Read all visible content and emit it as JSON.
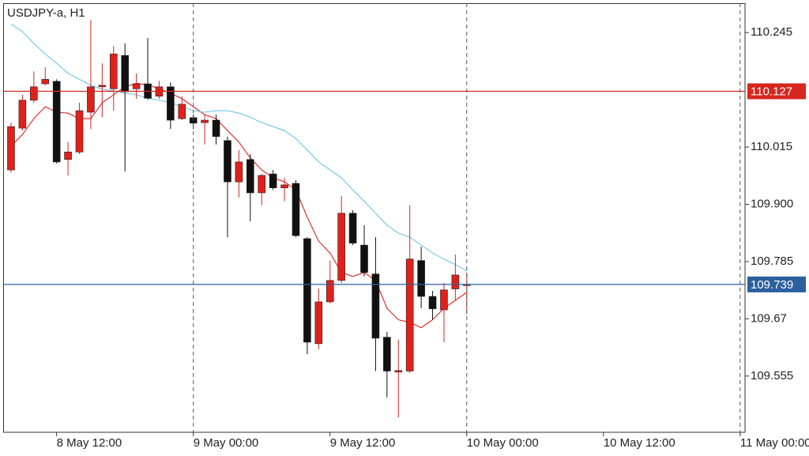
{
  "chart_data": {
    "type": "candlestick",
    "title": "USDJPY-a, H1",
    "x": [
      0,
      1,
      2,
      3,
      4,
      5,
      6,
      7,
      8,
      9,
      10,
      11,
      12,
      13,
      14,
      15,
      16,
      17,
      18,
      19,
      20,
      21,
      22,
      23,
      24,
      25,
      26,
      27,
      28,
      29,
      30,
      31,
      32,
      33,
      34,
      35,
      36,
      37,
      38,
      39,
      40
    ],
    "open": [
      109.969,
      110.053,
      110.109,
      110.142,
      110.147,
      109.99,
      110.005,
      110.085,
      110.136,
      110.132,
      110.199,
      110.132,
      110.142,
      110.117,
      110.136,
      110.072,
      110.074,
      110.064,
      110.069,
      110.028,
      109.945,
      109.99,
      109.923,
      109.961,
      109.933,
      109.942,
      109.831,
      109.62,
      109.704,
      109.747,
      109.882,
      109.818,
      109.76,
      109.633,
      109.563,
      109.565,
      109.787,
      109.715,
      109.688,
      109.73,
      109.738
    ],
    "high": [
      110.064,
      110.12,
      110.167,
      110.175,
      110.151,
      110.025,
      110.104,
      110.27,
      110.183,
      110.218,
      110.223,
      110.163,
      110.234,
      110.148,
      110.145,
      110.117,
      110.08,
      110.08,
      110.08,
      110.036,
      110.009,
      110.001,
      109.961,
      109.969,
      109.953,
      109.948,
      109.834,
      109.731,
      109.787,
      109.917,
      109.888,
      109.858,
      109.834,
      109.644,
      109.628,
      109.898,
      109.815,
      109.726,
      109.742,
      109.799,
      109.763
    ],
    "low": [
      109.964,
      110.048,
      110.104,
      110.139,
      109.982,
      109.958,
      110.001,
      110.051,
      110.075,
      110.088,
      109.966,
      110.112,
      110.11,
      110.112,
      110.051,
      110.069,
      110.051,
      110.02,
      110.02,
      109.834,
      109.914,
      109.866,
      109.898,
      109.929,
      109.906,
      109.834,
      109.599,
      109.609,
      109.701,
      109.742,
      109.818,
      109.755,
      109.565,
      109.512,
      109.472,
      109.561,
      109.691,
      109.668,
      109.623,
      109.707,
      109.679
    ],
    "close": [
      110.056,
      110.109,
      110.136,
      110.151,
      109.985,
      110.005,
      110.088,
      110.136,
      110.139,
      110.202,
      110.126,
      110.142,
      110.113,
      110.136,
      110.069,
      110.101,
      110.063,
      110.069,
      110.036,
      109.945,
      109.985,
      109.923,
      109.958,
      109.933,
      109.939,
      109.837,
      109.623,
      109.704,
      109.747,
      109.882,
      109.822,
      109.763,
      109.631,
      109.565,
      109.566,
      109.79,
      109.715,
      109.69,
      109.728,
      109.758,
      109.739
    ],
    "up_color": "#e0211b",
    "down_color": "#111111",
    "lines": [
      {
        "color": "#e0211b",
        "values": [
          110.017,
          110.04,
          110.072,
          110.096,
          110.085,
          110.083,
          110.072,
          110.072,
          110.104,
          110.12,
          110.136,
          110.143,
          110.14,
          110.132,
          110.123,
          110.112,
          110.096,
          110.08,
          110.072,
          110.048,
          110.025,
          109.993,
          109.969,
          109.953,
          109.945,
          109.929,
          109.874,
          109.826,
          109.802,
          109.763,
          109.755,
          109.763,
          109.747,
          109.691,
          109.668,
          109.663,
          109.652,
          109.668,
          109.691,
          109.707,
          109.723
        ]
      },
      {
        "color": "#6ec6e6",
        "values": [
          110.262,
          110.247,
          110.223,
          110.202,
          110.183,
          110.163,
          110.151,
          110.139,
          110.131,
          110.128,
          110.123,
          110.12,
          110.113,
          110.109,
          110.104,
          110.096,
          110.088,
          110.085,
          110.088,
          110.088,
          110.083,
          110.075,
          110.064,
          110.056,
          110.048,
          110.032,
          110.009,
          109.985,
          109.969,
          109.953,
          109.929,
          109.906,
          109.882,
          109.858,
          109.842,
          109.834,
          109.818,
          109.802,
          109.79,
          109.779,
          109.766
        ]
      }
    ],
    "levels": [
      {
        "value": 110.127,
        "color": "#d7261e"
      },
      {
        "value": 109.739,
        "color": "#2c5f9e"
      }
    ],
    "xlim": [
      -0.693,
      64.425
    ],
    "xticks": [
      {
        "value": 4,
        "label": "8 May 12:00"
      },
      {
        "value": 16,
        "label": "9 May 00:00"
      },
      {
        "value": 28,
        "label": "9 May 12:00"
      },
      {
        "value": 40,
        "label": "10 May 00:00"
      },
      {
        "value": 52,
        "label": "10 May 12:00"
      },
      {
        "value": 64,
        "label": "11 May 00:00"
      }
    ],
    "separators": [
      16,
      40,
      64
    ],
    "ylim": [
      109.442,
      110.304
    ],
    "yticks": [
      109.555,
      109.67,
      109.785,
      {
        "value": 109.9,
        "label": "109.900"
      },
      110.015,
      110.245
    ]
  }
}
